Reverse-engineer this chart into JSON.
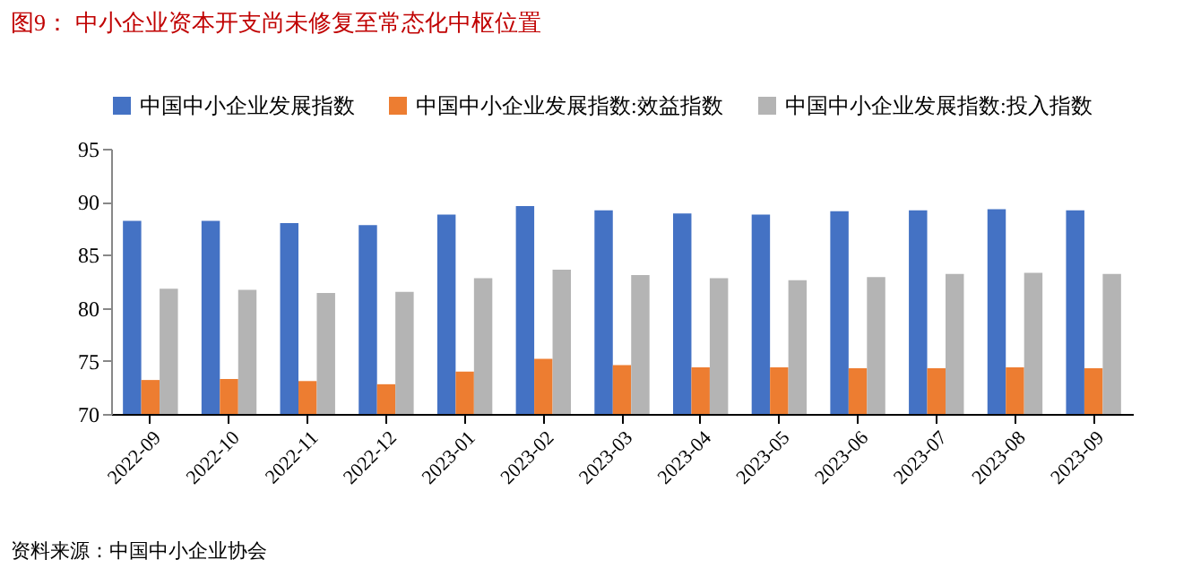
{
  "chart_data": {
    "type": "bar",
    "title": "图9：  中小企业资本开支尚未修复至常态化中枢位置",
    "categories": [
      "2022-09",
      "2022-10",
      "2022-11",
      "2022-12",
      "2023-01",
      "2023-02",
      "2023-03",
      "2023-04",
      "2023-05",
      "2023-06",
      "2023-07",
      "2023-08",
      "2023-09"
    ],
    "series": [
      {
        "name": "中国中小企业发展指数",
        "color": "#4472c4",
        "values": [
          88.2,
          88.2,
          88.0,
          87.8,
          88.8,
          89.6,
          89.2,
          88.9,
          88.8,
          89.1,
          89.2,
          89.3,
          89.2
        ]
      },
      {
        "name": "中国中小企业发展指数:效益指数",
        "color": "#ed7d31",
        "values": [
          73.2,
          73.3,
          73.1,
          72.8,
          74.0,
          75.2,
          74.6,
          74.4,
          74.4,
          74.3,
          74.3,
          74.4,
          74.3
        ]
      },
      {
        "name": "中国中小企业发展指数:投入指数",
        "color": "#b4b4b4",
        "values": [
          81.8,
          81.7,
          81.4,
          81.5,
          82.8,
          83.6,
          83.1,
          82.8,
          82.6,
          82.9,
          83.2,
          83.3,
          83.2
        ]
      }
    ],
    "ylim": [
      70,
      95
    ],
    "yticks": [
      70,
      75,
      80,
      85,
      90,
      95
    ],
    "grid": false,
    "legend": "top",
    "annotations": [
      "资料来源：中国中小企业协会"
    ]
  }
}
